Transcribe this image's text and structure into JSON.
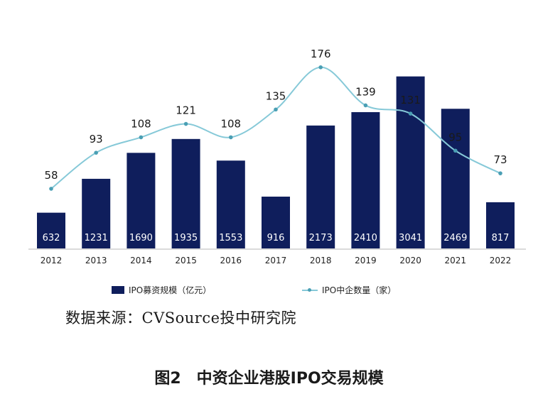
{
  "chart_data": {
    "type": "bar+line",
    "categories": [
      "2012",
      "2013",
      "2014",
      "2015",
      "2016",
      "2017",
      "2018",
      "2019",
      "2020",
      "2021",
      "2022"
    ],
    "series": [
      {
        "name": "IPO募资规模（亿元）",
        "type": "bar",
        "color": "#0f1e5c",
        "values": [
          632,
          1231,
          1690,
          1935,
          1553,
          916,
          2173,
          2410,
          3041,
          2469,
          817
        ]
      },
      {
        "name": "IPO中企数量（家）",
        "type": "line",
        "color": "#86c9d8",
        "values": [
          58,
          93,
          108,
          121,
          108,
          135,
          176,
          139,
          131,
          95,
          73
        ]
      }
    ],
    "bar_ylim": [
      0,
      3200
    ],
    "line_ylim": [
      0,
      200
    ],
    "grid": false,
    "legend_position": "bottom"
  },
  "source_text": "数据来源：CVSource投中研究院",
  "caption": "图2　中资企业港股IPO交易规模"
}
